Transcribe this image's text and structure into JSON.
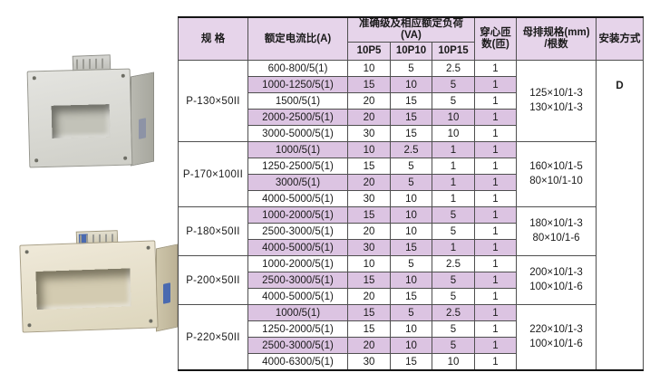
{
  "table": {
    "headers": {
      "spec": "规  格",
      "ratio": "额定电流比(A)",
      "load_group": "准确级及相应额定负荷(VA)",
      "load_cols": [
        "10P5",
        "10P10",
        "10P15"
      ],
      "turns": "穿心匝\n数(匝)",
      "busbar": "母排规格(mm)\n/根数",
      "install": "安装方式"
    },
    "install_value": "D",
    "groups": [
      {
        "spec": "P-130×50II",
        "busbar": "125×10/1-3\n130×10/1-3",
        "rows": [
          {
            "ratio": "600-800/5(1)",
            "p5": "10",
            "p10": "5",
            "p15": "2.5",
            "turns": "1"
          },
          {
            "ratio": "1000-1250/5(1)",
            "p5": "15",
            "p10": "10",
            "p15": "5",
            "turns": "1"
          },
          {
            "ratio": "1500/5(1)",
            "p5": "20",
            "p10": "15",
            "p15": "5",
            "turns": "1"
          },
          {
            "ratio": "2000-2500/5(1)",
            "p5": "20",
            "p10": "15",
            "p15": "10",
            "turns": "1"
          },
          {
            "ratio": "3000-5000/5(1)",
            "p5": "30",
            "p10": "15",
            "p15": "10",
            "turns": "1"
          }
        ]
      },
      {
        "spec": "P-170×100II",
        "busbar": "160×10/1-5\n80×10/1-10",
        "rows": [
          {
            "ratio": "1000/5(1)",
            "p5": "10",
            "p10": "2.5",
            "p15": "1",
            "turns": "1"
          },
          {
            "ratio": "1250-2500/5(1)",
            "p5": "15",
            "p10": "5",
            "p15": "1",
            "turns": "1"
          },
          {
            "ratio": "3000/5(1)",
            "p5": "20",
            "p10": "5",
            "p15": "1",
            "turns": "1"
          },
          {
            "ratio": "4000-5000/5(1)",
            "p5": "30",
            "p10": "10",
            "p15": "1",
            "turns": "1"
          }
        ]
      },
      {
        "spec": "P-180×50II",
        "busbar": "180×10/1-3\n80×10/1-6",
        "rows": [
          {
            "ratio": "1000-2000/5(1)",
            "p5": "15",
            "p10": "10",
            "p15": "5",
            "turns": "1"
          },
          {
            "ratio": "2500-3000/5(1)",
            "p5": "20",
            "p10": "10",
            "p15": "5",
            "turns": "1"
          },
          {
            "ratio": "4000-5000/5(1)",
            "p5": "30",
            "p10": "15",
            "p15": "1",
            "turns": "1"
          }
        ]
      },
      {
        "spec": "P-200×50II",
        "busbar": "200×10/1-3\n100×10/1-6",
        "rows": [
          {
            "ratio": "1000-2000/5(1)",
            "p5": "10",
            "p10": "5",
            "p15": "2.5",
            "turns": "1"
          },
          {
            "ratio": "2500-3000/5(1)",
            "p5": "15",
            "p10": "10",
            "p15": "5",
            "turns": "1"
          },
          {
            "ratio": "4000-5000/5(1)",
            "p5": "20",
            "p10": "15",
            "p15": "5",
            "turns": "1"
          }
        ]
      },
      {
        "spec": "P-220×50II",
        "busbar": "220×10/1-3\n100×10/1-6",
        "rows": [
          {
            "ratio": "1000/5(1)",
            "p5": "15",
            "p10": "5",
            "p15": "2.5",
            "turns": "1"
          },
          {
            "ratio": "1250-2000/5(1)",
            "p5": "15",
            "p10": "10",
            "p15": "5",
            "turns": "1"
          },
          {
            "ratio": "2500-3000/5(1)",
            "p5": "20",
            "p10": "10",
            "p15": "5",
            "turns": "1"
          },
          {
            "ratio": "4000-6300/5(1)",
            "p5": "30",
            "p10": "15",
            "p15": "10",
            "turns": "1"
          }
        ]
      }
    ],
    "colors": {
      "header_bg": "#e6d4ea",
      "stripe_bg": "#dcc4e2",
      "border": "#4f4f4f",
      "outer_border": "#151515"
    }
  },
  "products": [
    {
      "name": "current-transformer-grey",
      "body_color": "#d9d9d3"
    },
    {
      "name": "current-transformer-beige",
      "body_color": "#e7e1cd",
      "label_color": "#4a6ab0"
    }
  ]
}
